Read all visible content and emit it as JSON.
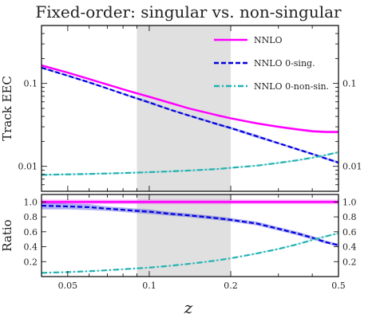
{
  "chart_data": [
    {
      "type": "line",
      "panel": "main",
      "title": "Fixed-order: singular vs. non-singular",
      "xlabel": "z",
      "ylabel": "Track EEC",
      "xscale": "log",
      "yscale": "log",
      "xlim": [
        0.04,
        0.5
      ],
      "ylim": [
        0.005,
        0.5
      ],
      "yticks": [
        0.01,
        0.1
      ],
      "ytick_labels": [
        "0.01",
        "0.1"
      ],
      "grid": false,
      "legend_position": "top-right",
      "shaded_x_region": [
        0.09,
        0.2
      ],
      "x": [
        0.04,
        0.05,
        0.06,
        0.07,
        0.08,
        0.09,
        0.1,
        0.12,
        0.14,
        0.16,
        0.18,
        0.2,
        0.25,
        0.3,
        0.35,
        0.4,
        0.45,
        0.5
      ],
      "series": [
        {
          "name": "NNLO",
          "color": "#ff00ff",
          "style": "solid",
          "values": [
            0.165,
            0.135,
            0.113,
            0.097,
            0.085,
            0.076,
            0.069,
            0.058,
            0.05,
            0.045,
            0.041,
            0.038,
            0.033,
            0.03,
            0.028,
            0.0265,
            0.026,
            0.026
          ],
          "band_lower": [
            0.16,
            0.131,
            0.11,
            0.095,
            0.083,
            0.074,
            0.067,
            0.056,
            0.049,
            0.044,
            0.04,
            0.037,
            0.032,
            0.029,
            0.027,
            0.0255,
            0.025,
            0.025
          ],
          "band_upper": [
            0.17,
            0.139,
            0.116,
            0.099,
            0.087,
            0.078,
            0.071,
            0.06,
            0.051,
            0.046,
            0.042,
            0.039,
            0.034,
            0.031,
            0.029,
            0.0275,
            0.027,
            0.027
          ]
        },
        {
          "name": "NNLO 0-sing.",
          "color": "#0000dd",
          "style": "dashed",
          "values": [
            0.155,
            0.124,
            0.103,
            0.087,
            0.075,
            0.066,
            0.059,
            0.048,
            0.041,
            0.036,
            0.032,
            0.029,
            0.023,
            0.019,
            0.0162,
            0.0141,
            0.0124,
            0.0111
          ],
          "band_lower": [
            0.151,
            0.121,
            0.1,
            0.085,
            0.073,
            0.064,
            0.057,
            0.047,
            0.04,
            0.035,
            0.031,
            0.028,
            0.022,
            0.0185,
            0.0157,
            0.0137,
            0.012,
            0.0107
          ],
          "band_upper": [
            0.159,
            0.127,
            0.106,
            0.089,
            0.077,
            0.068,
            0.061,
            0.049,
            0.042,
            0.037,
            0.033,
            0.03,
            0.024,
            0.0195,
            0.0167,
            0.0145,
            0.0128,
            0.0115
          ]
        },
        {
          "name": "NNLO 0-non-sin.",
          "color": "#22b2b2",
          "style": "dash-dot",
          "values": [
            0.0079,
            0.008,
            0.0081,
            0.0082,
            0.0083,
            0.0084,
            0.0085,
            0.0087,
            0.0089,
            0.0091,
            0.0093,
            0.0096,
            0.0102,
            0.011,
            0.0118,
            0.0127,
            0.0137,
            0.0148
          ],
          "band_lower": [
            0.0077,
            0.0078,
            0.0079,
            0.008,
            0.0081,
            0.0082,
            0.0083,
            0.0085,
            0.0087,
            0.0089,
            0.0091,
            0.0094,
            0.01,
            0.0107,
            0.0115,
            0.0124,
            0.0134,
            0.0144
          ],
          "band_upper": [
            0.0081,
            0.0082,
            0.0083,
            0.0084,
            0.0085,
            0.0086,
            0.0087,
            0.0089,
            0.0091,
            0.0093,
            0.0095,
            0.0098,
            0.0104,
            0.0113,
            0.0121,
            0.013,
            0.014,
            0.0152
          ]
        }
      ]
    },
    {
      "type": "line",
      "panel": "ratio",
      "ylabel": "Ratio",
      "xlabel": "z",
      "xscale": "log",
      "xlim": [
        0.04,
        0.5
      ],
      "ylim": [
        0.0,
        1.1
      ],
      "yticks": [
        0.2,
        0.4,
        0.6,
        0.8,
        1.0
      ],
      "ytick_labels": [
        "0.2",
        "0.4",
        "0.6",
        "0.8",
        "1.0"
      ],
      "xticks": [
        0.05,
        0.1,
        0.2,
        0.5
      ],
      "xtick_labels": [
        "0.05",
        "0.1",
        "0.2",
        "0.5"
      ],
      "grid": false,
      "shaded_x_region": [
        0.09,
        0.2
      ],
      "x": [
        0.04,
        0.05,
        0.06,
        0.07,
        0.08,
        0.09,
        0.1,
        0.12,
        0.14,
        0.16,
        0.18,
        0.2,
        0.25,
        0.3,
        0.35,
        0.4,
        0.45,
        0.5
      ],
      "series": [
        {
          "name": "NNLO",
          "color": "#ff00ff",
          "style": "solid",
          "values": [
            1,
            1,
            1,
            1,
            1,
            1,
            1,
            1,
            1,
            1,
            1,
            1,
            1,
            1,
            1,
            1,
            1,
            1
          ],
          "band_lower": [
            0.97,
            0.97,
            0.97,
            0.97,
            0.97,
            0.97,
            0.97,
            0.97,
            0.97,
            0.97,
            0.97,
            0.97,
            0.97,
            0.97,
            0.97,
            0.97,
            0.97,
            0.97
          ],
          "band_upper": [
            1.03,
            1.03,
            1.03,
            1.03,
            1.03,
            1.03,
            1.03,
            1.03,
            1.03,
            1.03,
            1.03,
            1.03,
            1.03,
            1.03,
            1.03,
            1.03,
            1.03,
            1.03
          ]
        },
        {
          "name": "NNLO 0-sing.",
          "color": "#0000dd",
          "style": "dashed",
          "values": [
            0.95,
            0.94,
            0.93,
            0.91,
            0.895,
            0.88,
            0.87,
            0.84,
            0.82,
            0.8,
            0.78,
            0.76,
            0.71,
            0.64,
            0.58,
            0.52,
            0.46,
            0.42
          ],
          "band_lower": [
            0.9,
            0.9,
            0.89,
            0.88,
            0.865,
            0.85,
            0.84,
            0.815,
            0.795,
            0.775,
            0.755,
            0.735,
            0.685,
            0.615,
            0.555,
            0.495,
            0.44,
            0.4
          ],
          "band_upper": [
            1.0,
            0.98,
            0.97,
            0.94,
            0.925,
            0.91,
            0.9,
            0.865,
            0.845,
            0.825,
            0.805,
            0.785,
            0.735,
            0.665,
            0.605,
            0.545,
            0.48,
            0.44
          ]
        },
        {
          "name": "NNLO 0-non-sin.",
          "color": "#22b2b2",
          "style": "dash-dot",
          "values": [
            0.05,
            0.06,
            0.072,
            0.085,
            0.098,
            0.11,
            0.12,
            0.145,
            0.17,
            0.195,
            0.22,
            0.245,
            0.31,
            0.37,
            0.43,
            0.49,
            0.54,
            0.58
          ],
          "band_lower": [
            0.045,
            0.055,
            0.067,
            0.08,
            0.093,
            0.105,
            0.115,
            0.14,
            0.165,
            0.19,
            0.215,
            0.24,
            0.3,
            0.36,
            0.42,
            0.48,
            0.53,
            0.57
          ],
          "band_upper": [
            0.055,
            0.065,
            0.077,
            0.09,
            0.103,
            0.115,
            0.125,
            0.15,
            0.175,
            0.2,
            0.225,
            0.25,
            0.32,
            0.38,
            0.44,
            0.5,
            0.55,
            0.59
          ]
        }
      ]
    }
  ]
}
